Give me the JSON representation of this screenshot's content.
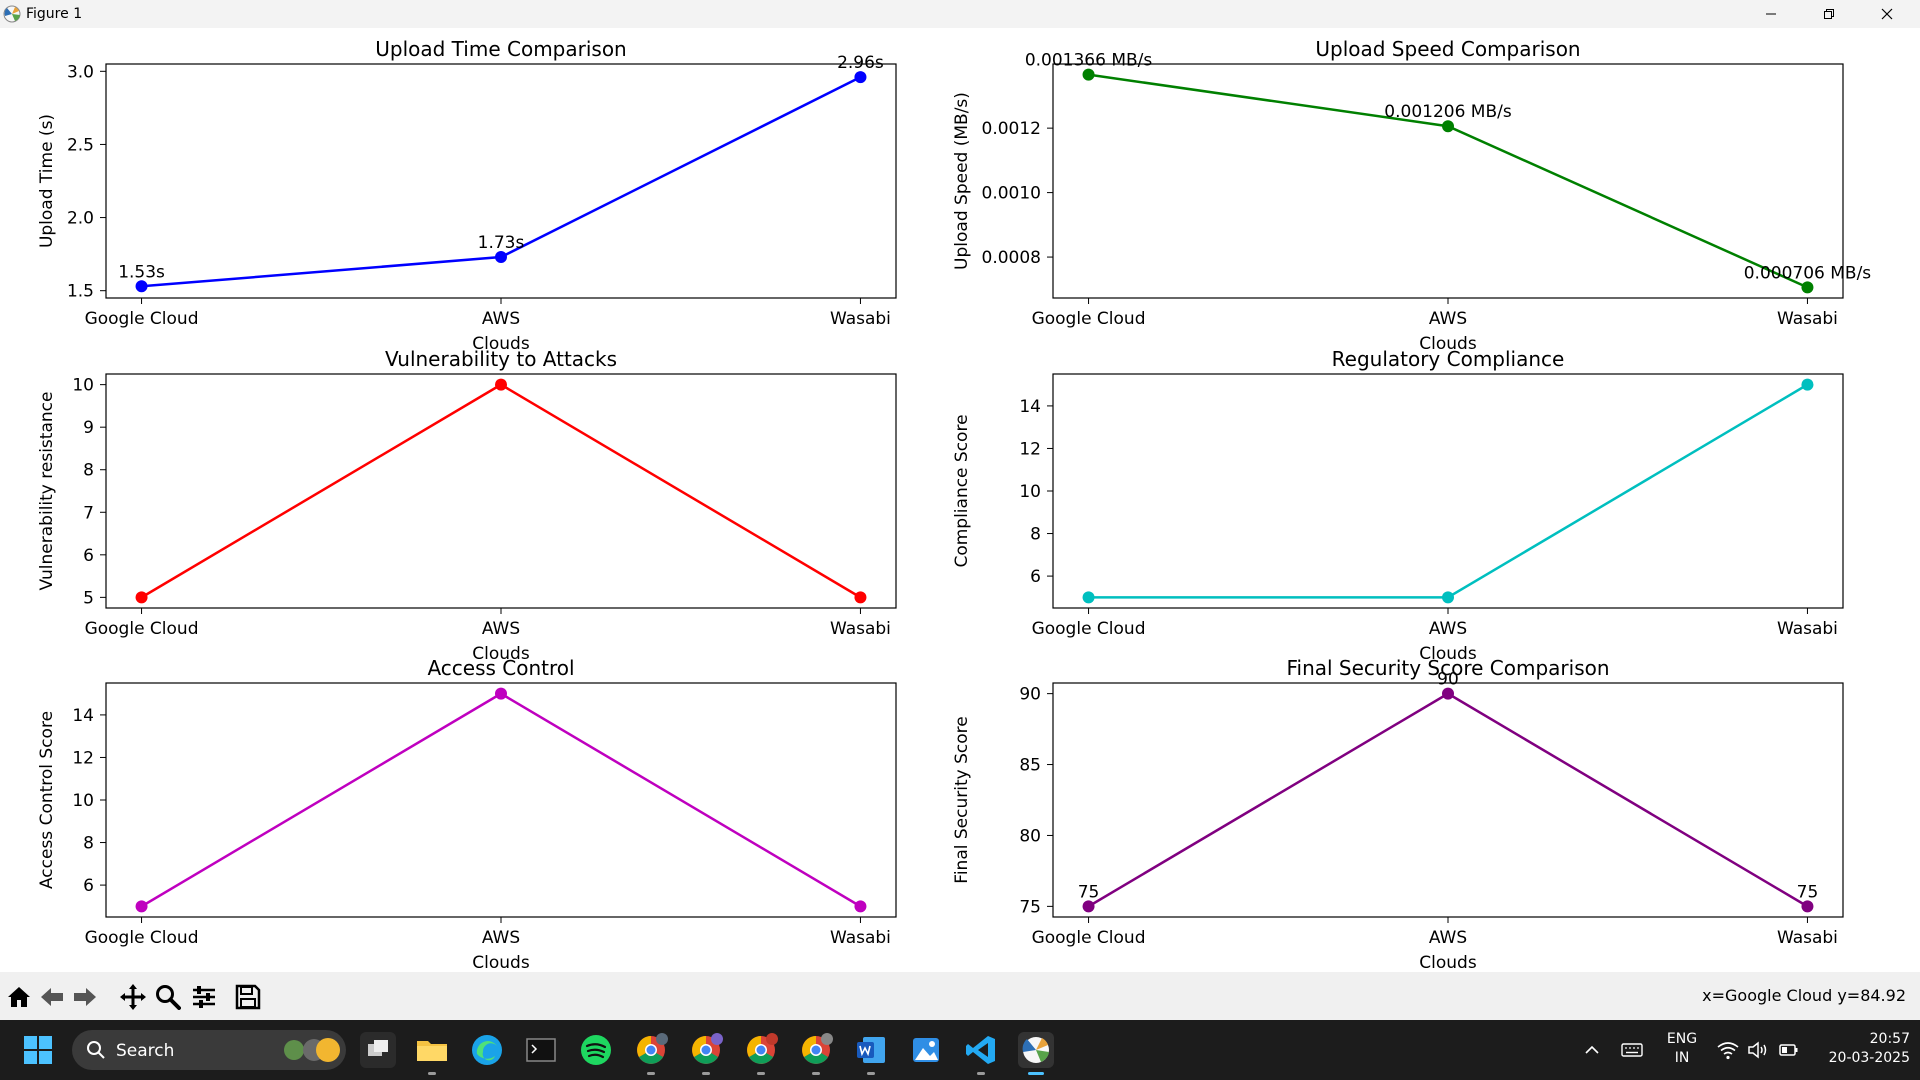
{
  "window": {
    "title": "Figure 1",
    "minimize_icon": "minimize-icon",
    "maximize_icon": "restore-icon",
    "close_icon": "close-icon"
  },
  "chart_data": [
    {
      "type": "line",
      "title": "Upload Time Comparison",
      "xlabel": "Clouds",
      "ylabel": "Upload Time (s)",
      "categories": [
        "Google Cloud",
        "AWS",
        "Wasabi"
      ],
      "values": [
        1.53,
        1.73,
        2.96
      ],
      "data_labels": [
        "1.53s",
        "1.73s",
        "2.96s"
      ],
      "ylim": [
        1.45,
        3.05
      ],
      "yticks": [
        1.5,
        2.0,
        2.5,
        3.0
      ],
      "ytick_labels": [
        "1.5",
        "2.0",
        "2.5",
        "3.0"
      ],
      "color": "#0000ff"
    },
    {
      "type": "line",
      "title": "Upload Speed Comparison",
      "xlabel": "Clouds",
      "ylabel": "Upload Speed (MB/s)",
      "categories": [
        "Google Cloud",
        "AWS",
        "Wasabi"
      ],
      "values": [
        0.001366,
        0.001206,
        0.000706
      ],
      "data_labels": [
        "0.001366 MB/s",
        "0.001206 MB/s",
        "0.000706 MB/s"
      ],
      "ylim": [
        0.000673,
        0.001399
      ],
      "yticks": [
        0.0008,
        0.001,
        0.0012
      ],
      "ytick_labels": [
        "0.0008",
        "0.0010",
        "0.0012"
      ],
      "color": "#008000"
    },
    {
      "type": "line",
      "title": "Vulnerability to Attacks",
      "xlabel": "Clouds",
      "ylabel": "Vulnerability resistance",
      "categories": [
        "Google Cloud",
        "AWS",
        "Wasabi"
      ],
      "values": [
        5,
        10,
        5
      ],
      "data_labels": [],
      "ylim": [
        4.75,
        10.25
      ],
      "yticks": [
        5,
        6,
        7,
        8,
        9,
        10
      ],
      "ytick_labels": [
        "5",
        "6",
        "7",
        "8",
        "9",
        "10"
      ],
      "color": "#ff0000"
    },
    {
      "type": "line",
      "title": "Regulatory Compliance",
      "xlabel": "Clouds",
      "ylabel": "Compliance Score",
      "categories": [
        "Google Cloud",
        "AWS",
        "Wasabi"
      ],
      "values": [
        5,
        5,
        15
      ],
      "data_labels": [],
      "ylim": [
        4.5,
        15.5
      ],
      "yticks": [
        6,
        8,
        10,
        12,
        14
      ],
      "ytick_labels": [
        "6",
        "8",
        "10",
        "12",
        "14"
      ],
      "color": "#00bfbf"
    },
    {
      "type": "line",
      "title": "Access Control",
      "xlabel": "Clouds",
      "ylabel": "Access Control Score",
      "categories": [
        "Google Cloud",
        "AWS",
        "Wasabi"
      ],
      "values": [
        5,
        15,
        5
      ],
      "data_labels": [],
      "ylim": [
        4.5,
        15.5
      ],
      "yticks": [
        6,
        8,
        10,
        12,
        14
      ],
      "ytick_labels": [
        "6",
        "8",
        "10",
        "12",
        "14"
      ],
      "color": "#bf00bf"
    },
    {
      "type": "line",
      "title": "Final Security Score Comparison",
      "xlabel": "Clouds",
      "ylabel": "Final Security Score",
      "categories": [
        "Google Cloud",
        "AWS",
        "Wasabi"
      ],
      "values": [
        75,
        90,
        75
      ],
      "data_labels": [
        "75",
        "90",
        "75"
      ],
      "ylim": [
        74.25,
        90.75
      ],
      "yticks": [
        75,
        80,
        85,
        90
      ],
      "ytick_labels": [
        "75",
        "80",
        "85",
        "90"
      ],
      "color": "#800080"
    }
  ],
  "toolbar": {
    "tools": [
      "home-icon",
      "back-icon",
      "forward-icon",
      "pan-icon",
      "zoom-icon",
      "configure-icon",
      "save-icon"
    ],
    "coords": "x=Google Cloud y=84.92"
  },
  "taskbar": {
    "search_label": "Search",
    "lang_top": "ENG",
    "lang_bottom": "IN",
    "time": "20:57",
    "date": "20-03-2025"
  }
}
